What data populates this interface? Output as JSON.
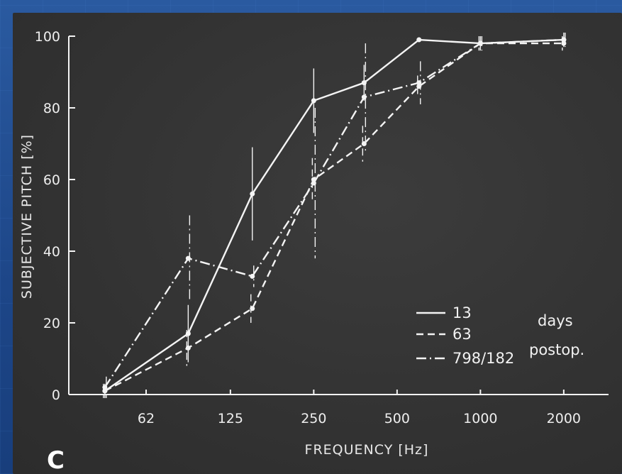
{
  "panel_letter": "C",
  "legend_note": [
    "days",
    "postop."
  ],
  "chart_data": {
    "type": "line",
    "xlabel": "FREQUENCY [Hz]",
    "ylabel": "SUBJECTIVE  PITCH [%]",
    "x_scale": "log2",
    "x_ticks": [
      62,
      125,
      250,
      500,
      1000,
      2000
    ],
    "x_tick_labels": [
      "62",
      "125",
      "250",
      "500",
      "1000",
      "2000"
    ],
    "y_ticks": [
      0,
      20,
      40,
      60,
      80,
      100
    ],
    "y_tick_labels": [
      "0",
      "20",
      "40",
      "60",
      "80",
      "100"
    ],
    "ylim": [
      0,
      100
    ],
    "x": [
      44,
      88,
      150,
      250,
      380,
      600,
      1000,
      2000
    ],
    "series": [
      {
        "name": "13",
        "dash": "solid",
        "values": [
          1,
          17,
          56,
          82,
          87,
          99,
          98,
          99
        ],
        "err": [
          2,
          8,
          13,
          9,
          5,
          0,
          2,
          2
        ]
      },
      {
        "name": "63",
        "dash": "dashed",
        "values": [
          1,
          13,
          24,
          60,
          70,
          86,
          98,
          98
        ],
        "err": [
          2,
          5,
          4,
          6,
          5,
          3,
          2,
          2
        ]
      },
      {
        "name": "798/182",
        "dash": "dashdot",
        "values": [
          2,
          38,
          33,
          59,
          83,
          87,
          98,
          99
        ],
        "err": [
          3,
          12,
          3,
          21,
          15,
          6,
          2,
          2
        ]
      }
    ]
  }
}
